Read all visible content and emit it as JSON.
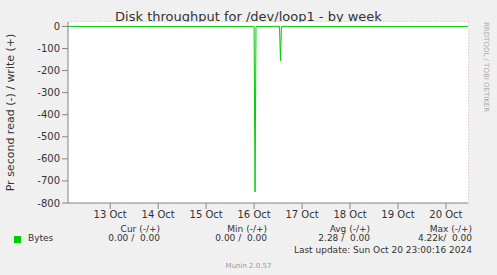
{
  "chart_data": {
    "type": "line",
    "title": "Disk throughput for /dev/loop1 - by week",
    "y_label": "Pr second read (-) / write (+)",
    "x": [
      12.62,
      16.5,
      16.52,
      16.54,
      17.03,
      17.05,
      17.07,
      20.96
    ],
    "series": [
      {
        "name": "Bytes",
        "color": "#00cc00",
        "values": [
          0,
          0,
          -750,
          0,
          0,
          -155,
          0,
          0
        ]
      }
    ],
    "xlim": [
      12.62,
      20.96
    ],
    "xticks": [
      {
        "value": 13.5,
        "label": "13 Oct"
      },
      {
        "value": 14.5,
        "label": "14 Oct"
      },
      {
        "value": 15.5,
        "label": "15 Oct"
      },
      {
        "value": 16.5,
        "label": "16 Oct"
      },
      {
        "value": 17.5,
        "label": "17 Oct"
      },
      {
        "value": 18.5,
        "label": "18 Oct"
      },
      {
        "value": 19.5,
        "label": "19 Oct"
      },
      {
        "value": 20.5,
        "label": "20 Oct"
      }
    ],
    "ylim": [
      -800,
      20
    ],
    "yticks": [
      0,
      -100,
      -200,
      -300,
      -400,
      -500,
      -600,
      -700,
      -800
    ],
    "grid": true,
    "summary": {
      "headers": [
        "Cur (-/+)",
        "Min (-/+)",
        "Avg (-/+)",
        "Max (-/+)"
      ],
      "values": [
        "0.00 /  0.00",
        "0.00 /  0.00",
        "2.28 /  0.00",
        "4.22k/  0.00"
      ]
    },
    "footer": "Last update: Sun Oct 20 23:00:16 2024",
    "credit": "Munin 2.0.57",
    "watermark": "RRDTOOL / TOBI OETIKER"
  }
}
